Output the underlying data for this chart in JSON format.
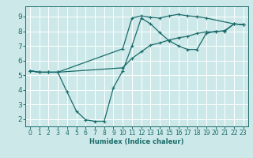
{
  "xlabel": "Humidex (Indice chaleur)",
  "bg_color": "#cce8e8",
  "line_color": "#1a6b6b",
  "grid_color": "#ffffff",
  "xlim": [
    -0.5,
    23.5
  ],
  "ylim": [
    1.5,
    9.7
  ],
  "xticks": [
    0,
    1,
    2,
    3,
    4,
    5,
    6,
    7,
    8,
    9,
    10,
    11,
    12,
    13,
    14,
    15,
    16,
    17,
    18,
    19,
    20,
    21,
    22,
    23
  ],
  "yticks": [
    2,
    3,
    4,
    5,
    6,
    7,
    8,
    9
  ],
  "line1_x": [
    0,
    1,
    2,
    3,
    10,
    11,
    12,
    13,
    14,
    15,
    16,
    17,
    18,
    19,
    22,
    23
  ],
  "line1_y": [
    5.3,
    5.2,
    5.2,
    5.2,
    6.8,
    8.9,
    9.05,
    8.95,
    8.9,
    9.05,
    9.15,
    9.05,
    9.0,
    8.9,
    8.5,
    8.45
  ],
  "line2_x": [
    0,
    1,
    2,
    3,
    4,
    5,
    6,
    7,
    8,
    9,
    10,
    11,
    12,
    13,
    14,
    15,
    16,
    17,
    18,
    19,
    20,
    21,
    22,
    23
  ],
  "line2_y": [
    5.3,
    5.2,
    5.2,
    5.2,
    3.85,
    2.55,
    1.95,
    1.85,
    1.85,
    4.15,
    5.3,
    7.0,
    8.9,
    8.5,
    7.9,
    7.35,
    7.0,
    6.75,
    6.75,
    7.85,
    8.0,
    8.0,
    8.5,
    8.45
  ],
  "line3_x": [
    0,
    1,
    2,
    3,
    10,
    11,
    12,
    13,
    14,
    15,
    16,
    17,
    18,
    19,
    20,
    21,
    22,
    23
  ],
  "line3_y": [
    5.3,
    5.2,
    5.2,
    5.2,
    5.5,
    6.15,
    6.6,
    7.05,
    7.2,
    7.4,
    7.55,
    7.65,
    7.85,
    7.95,
    7.95,
    8.05,
    8.5,
    8.45
  ]
}
